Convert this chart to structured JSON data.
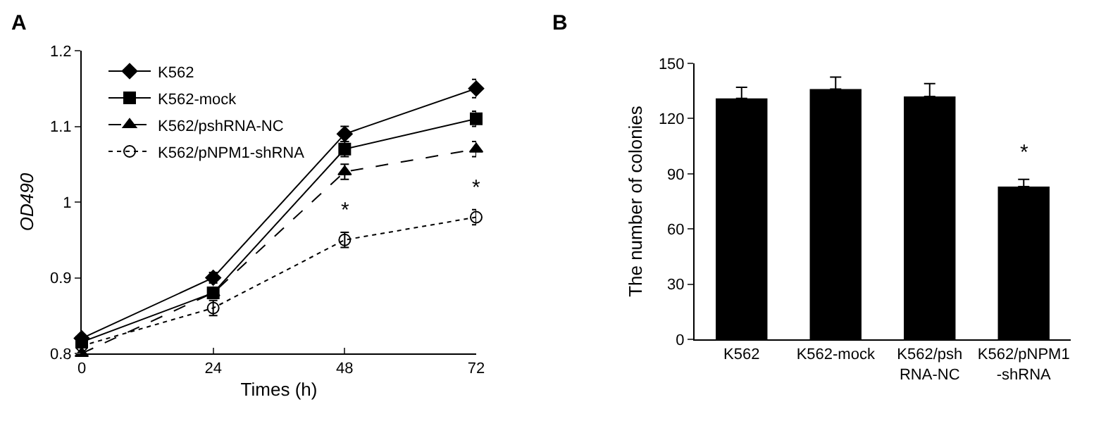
{
  "chart_data": [
    {
      "type": "line",
      "title": "A",
      "xlabel": "Times (h)",
      "ylabel": "OD490",
      "x": [
        0,
        24,
        48,
        72
      ],
      "xlim": [
        0,
        72
      ],
      "xticks": [
        0,
        24,
        48,
        72
      ],
      "ylim": [
        0.8,
        1.2
      ],
      "yticks": [
        0.8,
        0.9,
        {
          "value": 1.0,
          "label": "1"
        },
        1.1,
        1.2
      ],
      "grid": false,
      "legend": "top left",
      "series": [
        {
          "name": "K562",
          "color": "#000000",
          "marker": "diamond",
          "line_style": "solid",
          "values": [
            0.82,
            0.9,
            1.09,
            1.15
          ],
          "errors": [
            null,
            0.007,
            0.01,
            0.012
          ]
        },
        {
          "name": "K562-mock",
          "color": "#000000",
          "marker": "square",
          "line_style": "solid",
          "values": [
            0.815,
            0.88,
            1.07,
            1.11
          ],
          "errors": [
            null,
            null,
            0.01,
            0.01
          ]
        },
        {
          "name": "K562/pshRNA-NC",
          "color": "#000000",
          "marker": "triangle",
          "line_style": "dashed",
          "values": [
            0.8,
            0.88,
            1.04,
            1.07
          ],
          "errors": [
            null,
            null,
            0.01,
            0.01
          ]
        },
        {
          "name": "K562/pNPM1-shRNA",
          "color": "#000000",
          "marker": "circle",
          "line_style": "dotted",
          "values": [
            0.81,
            0.86,
            0.95,
            0.98
          ],
          "errors": [
            null,
            0.01,
            0.01,
            0.01
          ]
        }
      ],
      "annotations": [
        {
          "text": "*",
          "x": 48,
          "y": 0.95
        },
        {
          "text": "*",
          "x": 72,
          "y": 0.98
        }
      ]
    },
    {
      "type": "bar",
      "title": "B",
      "ylabel": "The number of colonies",
      "categories": [
        "K562",
        "K562-mock",
        "K562/psh\nRNA-NC",
        "K562/pNPM1\n-shRNA"
      ],
      "values": [
        131,
        136,
        132,
        83
      ],
      "errors": [
        6,
        6.5,
        7,
        4
      ],
      "color": "#000000",
      "ylim": [
        0,
        150
      ],
      "yticks": [
        0,
        30,
        60,
        90,
        120,
        150
      ],
      "grid": false,
      "legend": false,
      "annotations": [
        {
          "text": "*",
          "x": "K562/pNPM1\n-shRNA",
          "y": 83
        }
      ]
    }
  ]
}
